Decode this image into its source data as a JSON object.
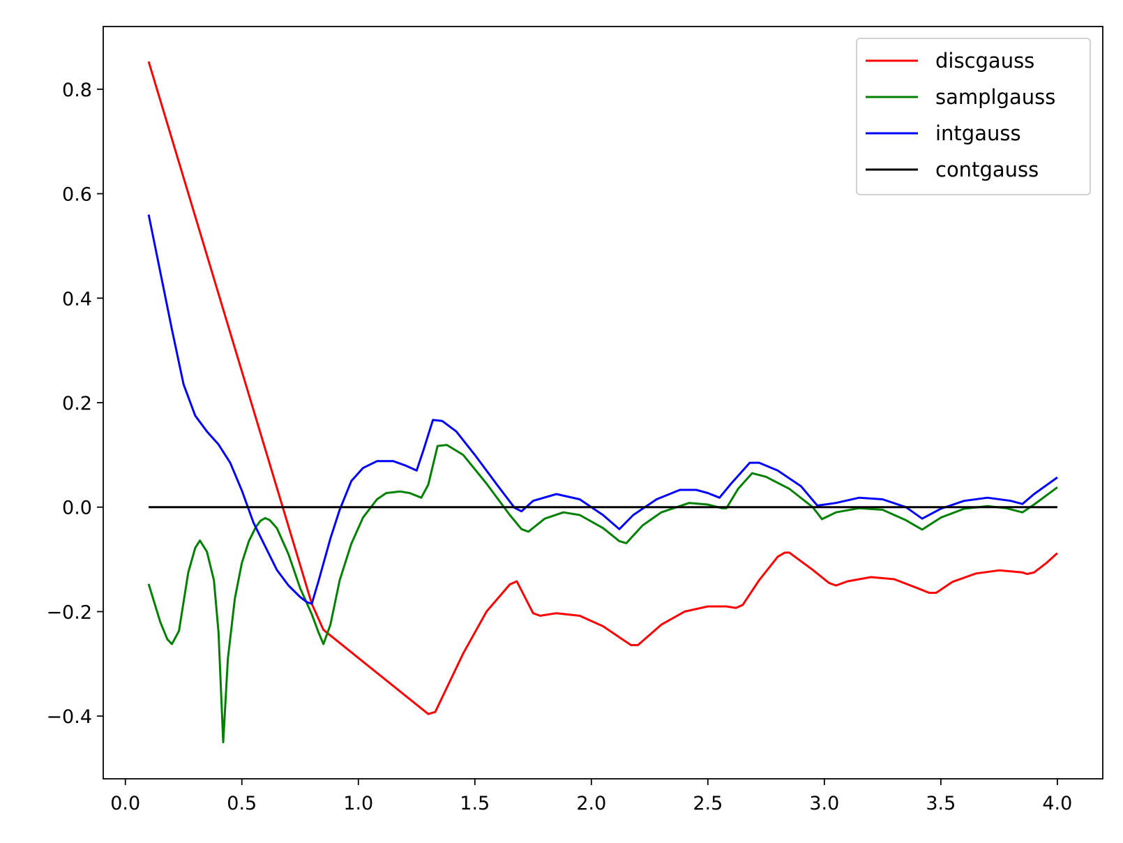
{
  "chart_data": {
    "type": "line",
    "title": "",
    "xlabel": "",
    "ylabel": "",
    "xlim": [
      -0.095,
      4.195
    ],
    "ylim": [
      -0.52,
      0.92
    ],
    "xticks": [
      0.0,
      0.5,
      1.0,
      1.5,
      2.0,
      2.5,
      3.0,
      3.5,
      4.0
    ],
    "xtick_labels": [
      "0.0",
      "0.5",
      "1.0",
      "1.5",
      "2.0",
      "2.5",
      "3.0",
      "3.5",
      "4.0"
    ],
    "yticks": [
      -0.4,
      -0.2,
      0.0,
      0.2,
      0.4,
      0.6,
      0.8
    ],
    "ytick_labels": [
      "−0.4",
      "−0.2",
      "0.0",
      "0.2",
      "0.4",
      "0.6",
      "0.8"
    ],
    "grid": false,
    "legend_position": "top-right",
    "series": [
      {
        "name": "discgauss",
        "color": "#ff0000",
        "points": [
          [
            0.1,
            0.853
          ],
          [
            0.8,
            -0.185
          ],
          [
            0.85,
            -0.235
          ],
          [
            1.3,
            -0.396
          ],
          [
            1.33,
            -0.392
          ],
          [
            1.45,
            -0.28
          ],
          [
            1.55,
            -0.2
          ],
          [
            1.65,
            -0.148
          ],
          [
            1.68,
            -0.142
          ],
          [
            1.75,
            -0.203
          ],
          [
            1.78,
            -0.208
          ],
          [
            1.85,
            -0.203
          ],
          [
            1.95,
            -0.208
          ],
          [
            2.05,
            -0.228
          ],
          [
            2.15,
            -0.258
          ],
          [
            2.17,
            -0.264
          ],
          [
            2.2,
            -0.264
          ],
          [
            2.3,
            -0.225
          ],
          [
            2.4,
            -0.2
          ],
          [
            2.5,
            -0.19
          ],
          [
            2.58,
            -0.19
          ],
          [
            2.62,
            -0.193
          ],
          [
            2.65,
            -0.187
          ],
          [
            2.72,
            -0.14
          ],
          [
            2.8,
            -0.095
          ],
          [
            2.83,
            -0.087
          ],
          [
            2.85,
            -0.087
          ],
          [
            2.95,
            -0.12
          ],
          [
            3.02,
            -0.145
          ],
          [
            3.05,
            -0.15
          ],
          [
            3.1,
            -0.142
          ],
          [
            3.2,
            -0.134
          ],
          [
            3.3,
            -0.138
          ],
          [
            3.4,
            -0.155
          ],
          [
            3.45,
            -0.164
          ],
          [
            3.48,
            -0.164
          ],
          [
            3.55,
            -0.143
          ],
          [
            3.65,
            -0.127
          ],
          [
            3.75,
            -0.121
          ],
          [
            3.85,
            -0.125
          ],
          [
            3.87,
            -0.128
          ],
          [
            3.9,
            -0.125
          ],
          [
            3.95,
            -0.108
          ],
          [
            4.0,
            -0.088
          ]
        ]
      },
      {
        "name": "samplgauss",
        "color": "#008000",
        "points": [
          [
            0.1,
            -0.147
          ],
          [
            0.15,
            -0.22
          ],
          [
            0.18,
            -0.253
          ],
          [
            0.2,
            -0.262
          ],
          [
            0.23,
            -0.237
          ],
          [
            0.27,
            -0.125
          ],
          [
            0.3,
            -0.078
          ],
          [
            0.32,
            -0.064
          ],
          [
            0.35,
            -0.085
          ],
          [
            0.38,
            -0.14
          ],
          [
            0.4,
            -0.24
          ],
          [
            0.42,
            -0.45
          ],
          [
            0.44,
            -0.29
          ],
          [
            0.47,
            -0.175
          ],
          [
            0.5,
            -0.107
          ],
          [
            0.53,
            -0.065
          ],
          [
            0.56,
            -0.038
          ],
          [
            0.58,
            -0.026
          ],
          [
            0.6,
            -0.021
          ],
          [
            0.62,
            -0.025
          ],
          [
            0.65,
            -0.04
          ],
          [
            0.7,
            -0.09
          ],
          [
            0.75,
            -0.155
          ],
          [
            0.8,
            -0.205
          ],
          [
            0.83,
            -0.241
          ],
          [
            0.85,
            -0.262
          ],
          [
            0.88,
            -0.225
          ],
          [
            0.92,
            -0.14
          ],
          [
            0.97,
            -0.07
          ],
          [
            1.02,
            -0.02
          ],
          [
            1.08,
            0.015
          ],
          [
            1.12,
            0.027
          ],
          [
            1.18,
            0.03
          ],
          [
            1.22,
            0.027
          ],
          [
            1.27,
            0.018
          ],
          [
            1.3,
            0.043
          ],
          [
            1.34,
            0.117
          ],
          [
            1.38,
            0.119
          ],
          [
            1.45,
            0.1
          ],
          [
            1.55,
            0.045
          ],
          [
            1.65,
            -0.015
          ],
          [
            1.7,
            -0.042
          ],
          [
            1.73,
            -0.047
          ],
          [
            1.8,
            -0.022
          ],
          [
            1.88,
            -0.01
          ],
          [
            1.95,
            -0.015
          ],
          [
            2.05,
            -0.04
          ],
          [
            2.12,
            -0.065
          ],
          [
            2.15,
            -0.069
          ],
          [
            2.22,
            -0.035
          ],
          [
            2.3,
            -0.01
          ],
          [
            2.42,
            0.008
          ],
          [
            2.5,
            0.005
          ],
          [
            2.56,
            -0.002
          ],
          [
            2.58,
            -0.002
          ],
          [
            2.63,
            0.035
          ],
          [
            2.69,
            0.065
          ],
          [
            2.75,
            0.058
          ],
          [
            2.85,
            0.035
          ],
          [
            2.95,
            0.0
          ],
          [
            2.99,
            -0.023
          ],
          [
            3.05,
            -0.01
          ],
          [
            3.15,
            -0.002
          ],
          [
            3.25,
            -0.005
          ],
          [
            3.35,
            -0.025
          ],
          [
            3.42,
            -0.043
          ],
          [
            3.5,
            -0.02
          ],
          [
            3.6,
            -0.003
          ],
          [
            3.7,
            0.002
          ],
          [
            3.78,
            -0.002
          ],
          [
            3.85,
            -0.01
          ],
          [
            3.9,
            0.005
          ],
          [
            4.0,
            0.038
          ]
        ]
      },
      {
        "name": "intgauss",
        "color": "#0000ff",
        "points": [
          [
            0.1,
            0.56
          ],
          [
            0.15,
            0.45
          ],
          [
            0.2,
            0.34
          ],
          [
            0.25,
            0.235
          ],
          [
            0.3,
            0.175
          ],
          [
            0.35,
            0.145
          ],
          [
            0.4,
            0.12
          ],
          [
            0.45,
            0.085
          ],
          [
            0.5,
            0.032
          ],
          [
            0.55,
            -0.03
          ],
          [
            0.6,
            -0.075
          ],
          [
            0.65,
            -0.12
          ],
          [
            0.7,
            -0.15
          ],
          [
            0.75,
            -0.172
          ],
          [
            0.78,
            -0.182
          ],
          [
            0.8,
            -0.185
          ],
          [
            0.83,
            -0.14
          ],
          [
            0.88,
            -0.06
          ],
          [
            0.92,
            -0.005
          ],
          [
            0.97,
            0.05
          ],
          [
            1.02,
            0.075
          ],
          [
            1.08,
            0.088
          ],
          [
            1.15,
            0.088
          ],
          [
            1.2,
            0.08
          ],
          [
            1.25,
            0.07
          ],
          [
            1.28,
            0.11
          ],
          [
            1.32,
            0.167
          ],
          [
            1.36,
            0.165
          ],
          [
            1.42,
            0.145
          ],
          [
            1.5,
            0.1
          ],
          [
            1.6,
            0.04
          ],
          [
            1.67,
            -0.001
          ],
          [
            1.7,
            -0.008
          ],
          [
            1.75,
            0.012
          ],
          [
            1.85,
            0.025
          ],
          [
            1.95,
            0.015
          ],
          [
            2.05,
            -0.015
          ],
          [
            2.12,
            -0.042
          ],
          [
            2.18,
            -0.015
          ],
          [
            2.28,
            0.015
          ],
          [
            2.38,
            0.033
          ],
          [
            2.45,
            0.033
          ],
          [
            2.5,
            0.027
          ],
          [
            2.55,
            0.018
          ],
          [
            2.6,
            0.045
          ],
          [
            2.68,
            0.085
          ],
          [
            2.72,
            0.085
          ],
          [
            2.8,
            0.07
          ],
          [
            2.9,
            0.04
          ],
          [
            2.97,
            0.003
          ],
          [
            3.05,
            0.008
          ],
          [
            3.15,
            0.018
          ],
          [
            3.25,
            0.015
          ],
          [
            3.35,
            0.0
          ],
          [
            3.42,
            -0.022
          ],
          [
            3.5,
            -0.003
          ],
          [
            3.6,
            0.012
          ],
          [
            3.7,
            0.018
          ],
          [
            3.8,
            0.012
          ],
          [
            3.85,
            0.006
          ],
          [
            3.9,
            0.025
          ],
          [
            4.0,
            0.057
          ]
        ]
      },
      {
        "name": "contgauss",
        "color": "#000000",
        "points": [
          [
            0.1,
            0.0
          ],
          [
            4.0,
            0.0
          ]
        ]
      }
    ]
  }
}
